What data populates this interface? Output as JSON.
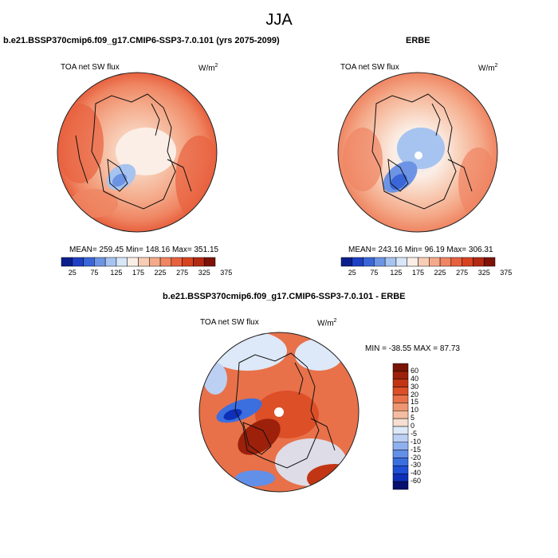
{
  "figure": {
    "title": "JJA"
  },
  "panels": [
    {
      "title": "b.e21.BSSP370cmip6.f09_g17.CMIP6-SSP3-7.0.101 (yrs 2075-2099)",
      "variable": "TOA net SW flux",
      "units": "W/m",
      "units_sup": "2",
      "stats": "MEAN= 259.45  Min= 148.16  Max= 351.15",
      "colorbar_ticks": [
        "25",
        "75",
        "125",
        "175",
        "225",
        "275",
        "325",
        "375"
      ]
    },
    {
      "title": "ERBE",
      "variable": "TOA net SW flux",
      "units": "W/m",
      "units_sup": "2",
      "stats": "MEAN= 243.16  Min=  96.19  Max= 306.31",
      "colorbar_ticks": [
        "25",
        "75",
        "125",
        "175",
        "225",
        "275",
        "325",
        "375"
      ]
    },
    {
      "title": "b.e21.BSSP370cmip6.f09_g17.CMIP6-SSP3-7.0.101 - ERBE",
      "variable": "TOA net SW flux",
      "units": "W/m",
      "units_sup": "2",
      "stats": "MIN = -38.55 MAX =  87.73",
      "colorbar_ticks": [
        "60",
        "40",
        "30",
        "20",
        "15",
        "10",
        "5",
        "0",
        "-5",
        "-10",
        "-15",
        "-20",
        "-30",
        "-40",
        "-60"
      ]
    }
  ],
  "colors": {
    "abs_scale": [
      "#0b1f8c",
      "#1f3fc4",
      "#3a66d8",
      "#6d94e4",
      "#a7c4f0",
      "#d7e6f8",
      "#fbeee6",
      "#f8cdb6",
      "#f4aa8a",
      "#ef8562",
      "#e8613e",
      "#d8431f",
      "#b22a12",
      "#7e1208"
    ],
    "diff_scale": [
      "#08106e",
      "#0e2fb8",
      "#1f4fd6",
      "#3b6fe0",
      "#628fe8",
      "#8fb0ee",
      "#bcd0f4",
      "#dde8f8",
      "#f6dfd0",
      "#f4bca0",
      "#ee9670",
      "#e8714a",
      "#dc4f27",
      "#c23514",
      "#9c200a",
      "#7a1405"
    ]
  },
  "map_labels": {
    "map1": "arctic-polar-map-model",
    "map2": "arctic-polar-map-erbe",
    "map3": "arctic-polar-map-difference"
  }
}
